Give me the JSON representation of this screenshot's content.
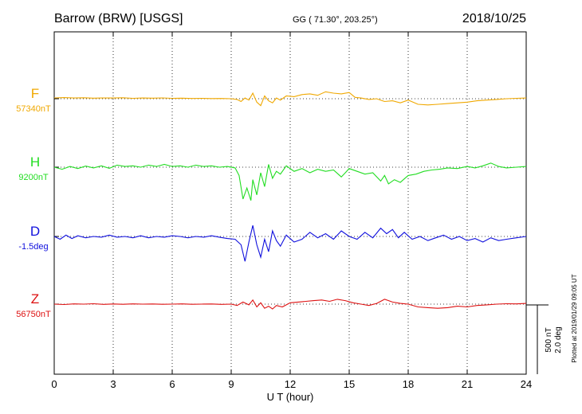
{
  "header": {
    "station": "Barrow (BRW)  [USGS]",
    "coords": "GG ( 71.30°, 203.25°)",
    "date": "2018/10/25"
  },
  "footer": {
    "xlabel": "U T (hour)",
    "plotted": "Plotted at 2019/01/29 09:05 UT"
  },
  "scale_bar": {
    "label_nt": "500 nT",
    "label_deg": "2.0 deg"
  },
  "chart_data": {
    "type": "line",
    "xlabel": "U T (hour)",
    "xlim": [
      0,
      24
    ],
    "xticks": [
      0,
      3,
      6,
      9,
      12,
      15,
      18,
      21,
      24
    ],
    "grid": "dotted vertical at each tick and dotted baseline per trace",
    "series": [
      {
        "name": "F",
        "baseline_label": "57340nT",
        "color": "#f0a800",
        "units_per_panel": "nT",
        "points": [
          [
            0,
            6
          ],
          [
            0.5,
            8
          ],
          [
            1,
            5
          ],
          [
            1.5,
            7
          ],
          [
            2,
            4
          ],
          [
            2.5,
            6
          ],
          [
            3,
            5
          ],
          [
            3.5,
            7
          ],
          [
            4,
            3
          ],
          [
            4.5,
            5
          ],
          [
            5,
            4
          ],
          [
            5.5,
            6
          ],
          [
            6,
            3
          ],
          [
            6.5,
            4
          ],
          [
            7,
            2
          ],
          [
            7.5,
            3
          ],
          [
            8,
            1
          ],
          [
            8.5,
            2
          ],
          [
            9,
            0
          ],
          [
            9.3,
            -5
          ],
          [
            9.5,
            -20
          ],
          [
            9.7,
            5
          ],
          [
            9.9,
            -10
          ],
          [
            10.1,
            40
          ],
          [
            10.3,
            -25
          ],
          [
            10.5,
            -50
          ],
          [
            10.7,
            20
          ],
          [
            10.9,
            -15
          ],
          [
            11.1,
            -30
          ],
          [
            11.3,
            5
          ],
          [
            11.5,
            -10
          ],
          [
            11.8,
            20
          ],
          [
            12.2,
            15
          ],
          [
            12.6,
            30
          ],
          [
            13,
            35
          ],
          [
            13.4,
            25
          ],
          [
            13.8,
            50
          ],
          [
            14.2,
            40
          ],
          [
            14.6,
            35
          ],
          [
            15,
            45
          ],
          [
            15.3,
            10
          ],
          [
            15.6,
            5
          ],
          [
            16,
            -5
          ],
          [
            16.4,
            0
          ],
          [
            16.8,
            -20
          ],
          [
            17.2,
            -15
          ],
          [
            17.6,
            -30
          ],
          [
            18,
            -10
          ],
          [
            18.5,
            -40
          ],
          [
            19,
            -45
          ],
          [
            19.5,
            -40
          ],
          [
            20,
            -35
          ],
          [
            20.5,
            -30
          ],
          [
            21,
            -25
          ],
          [
            21.5,
            -15
          ],
          [
            22,
            -10
          ],
          [
            22.5,
            -5
          ],
          [
            23,
            0
          ],
          [
            23.5,
            3
          ],
          [
            24,
            5
          ]
        ]
      },
      {
        "name": "H",
        "baseline_label": "9200nT",
        "color": "#22dd22",
        "units_per_panel": "nT",
        "points": [
          [
            0,
            0
          ],
          [
            0.4,
            -15
          ],
          [
            0.8,
            5
          ],
          [
            1.2,
            -10
          ],
          [
            1.6,
            8
          ],
          [
            2,
            -5
          ],
          [
            2.4,
            10
          ],
          [
            2.8,
            -8
          ],
          [
            3.2,
            15
          ],
          [
            3.6,
            5
          ],
          [
            4,
            10
          ],
          [
            4.4,
            0
          ],
          [
            4.8,
            15
          ],
          [
            5.2,
            5
          ],
          [
            5.6,
            20
          ],
          [
            6,
            5
          ],
          [
            6.4,
            10
          ],
          [
            6.8,
            0
          ],
          [
            7.2,
            15
          ],
          [
            7.6,
            5
          ],
          [
            8,
            10
          ],
          [
            8.4,
            0
          ],
          [
            8.8,
            5
          ],
          [
            9.2,
            -5
          ],
          [
            9.4,
            -60
          ],
          [
            9.6,
            -230
          ],
          [
            9.8,
            -150
          ],
          [
            10,
            -240
          ],
          [
            10.1,
            -90
          ],
          [
            10.3,
            -200
          ],
          [
            10.5,
            -40
          ],
          [
            10.7,
            -140
          ],
          [
            10.9,
            20
          ],
          [
            11.1,
            -80
          ],
          [
            11.3,
            -30
          ],
          [
            11.5,
            -50
          ],
          [
            11.8,
            10
          ],
          [
            12.2,
            -30
          ],
          [
            12.6,
            -10
          ],
          [
            13,
            -40
          ],
          [
            13.4,
            -15
          ],
          [
            13.8,
            -30
          ],
          [
            14.2,
            -20
          ],
          [
            14.6,
            -70
          ],
          [
            14.8,
            -40
          ],
          [
            15,
            -10
          ],
          [
            15.4,
            -30
          ],
          [
            15.8,
            -50
          ],
          [
            16.2,
            -40
          ],
          [
            16.6,
            -100
          ],
          [
            16.8,
            -60
          ],
          [
            17,
            -120
          ],
          [
            17.3,
            -90
          ],
          [
            17.6,
            -110
          ],
          [
            18,
            -60
          ],
          [
            18.4,
            -50
          ],
          [
            18.8,
            -30
          ],
          [
            19.2,
            -20
          ],
          [
            19.6,
            -15
          ],
          [
            20,
            -5
          ],
          [
            20.5,
            -10
          ],
          [
            21,
            5
          ],
          [
            21.4,
            -5
          ],
          [
            21.8,
            10
          ],
          [
            22.2,
            30
          ],
          [
            22.6,
            5
          ],
          [
            23,
            -5
          ],
          [
            23.5,
            0
          ],
          [
            24,
            5
          ]
        ]
      },
      {
        "name": "D",
        "baseline_label": "-1.5deg",
        "color": "#1010dd",
        "units_per_panel": "deg",
        "points": [
          [
            0,
            0
          ],
          [
            0.3,
            -20
          ],
          [
            0.6,
            10
          ],
          [
            0.9,
            -15
          ],
          [
            1.2,
            5
          ],
          [
            1.6,
            -10
          ],
          [
            2,
            0
          ],
          [
            2.4,
            -5
          ],
          [
            2.8,
            10
          ],
          [
            3.2,
            -5
          ],
          [
            3.6,
            0
          ],
          [
            4,
            -10
          ],
          [
            4.4,
            5
          ],
          [
            4.8,
            -10
          ],
          [
            5.2,
            0
          ],
          [
            5.6,
            -5
          ],
          [
            6,
            5
          ],
          [
            6.4,
            0
          ],
          [
            6.8,
            -10
          ],
          [
            7.2,
            0
          ],
          [
            7.6,
            -5
          ],
          [
            8,
            5
          ],
          [
            8.4,
            -5
          ],
          [
            8.8,
            -15
          ],
          [
            9.2,
            -20
          ],
          [
            9.5,
            -60
          ],
          [
            9.7,
            -180
          ],
          [
            9.9,
            -40
          ],
          [
            10.1,
            80
          ],
          [
            10.3,
            -60
          ],
          [
            10.5,
            -150
          ],
          [
            10.7,
            -20
          ],
          [
            10.9,
            -110
          ],
          [
            11.1,
            40
          ],
          [
            11.3,
            -30
          ],
          [
            11.5,
            -70
          ],
          [
            11.8,
            10
          ],
          [
            12.2,
            -40
          ],
          [
            12.6,
            -20
          ],
          [
            13,
            30
          ],
          [
            13.4,
            -10
          ],
          [
            13.8,
            20
          ],
          [
            14.2,
            -20
          ],
          [
            14.6,
            40
          ],
          [
            15,
            0
          ],
          [
            15.4,
            -20
          ],
          [
            15.8,
            30
          ],
          [
            16.2,
            -10
          ],
          [
            16.6,
            60
          ],
          [
            16.9,
            20
          ],
          [
            17.2,
            50
          ],
          [
            17.5,
            -10
          ],
          [
            17.8,
            30
          ],
          [
            18.2,
            -20
          ],
          [
            18.6,
            0
          ],
          [
            19,
            -30
          ],
          [
            19.4,
            -10
          ],
          [
            19.8,
            10
          ],
          [
            20.2,
            -20
          ],
          [
            20.6,
            0
          ],
          [
            21,
            -30
          ],
          [
            21.4,
            -15
          ],
          [
            21.8,
            -40
          ],
          [
            22.2,
            -10
          ],
          [
            22.6,
            -30
          ],
          [
            23,
            -20
          ],
          [
            23.5,
            -10
          ],
          [
            24,
            0
          ]
        ]
      },
      {
        "name": "Z",
        "baseline_label": "56750nT",
        "color": "#dd1010",
        "units_per_panel": "nT",
        "points": [
          [
            0,
            0
          ],
          [
            0.5,
            -3
          ],
          [
            1,
            2
          ],
          [
            1.5,
            0
          ],
          [
            2,
            3
          ],
          [
            2.5,
            -2
          ],
          [
            3,
            1
          ],
          [
            3.5,
            -1
          ],
          [
            4,
            2
          ],
          [
            4.5,
            0
          ],
          [
            5,
            1
          ],
          [
            5.5,
            -1
          ],
          [
            6,
            0
          ],
          [
            6.5,
            2
          ],
          [
            7,
            -1
          ],
          [
            7.5,
            0
          ],
          [
            8,
            1
          ],
          [
            8.5,
            -2
          ],
          [
            9,
            0
          ],
          [
            9.3,
            -10
          ],
          [
            9.6,
            15
          ],
          [
            9.9,
            -5
          ],
          [
            10.1,
            30
          ],
          [
            10.3,
            -20
          ],
          [
            10.5,
            10
          ],
          [
            10.7,
            -30
          ],
          [
            10.9,
            -15
          ],
          [
            11.1,
            -35
          ],
          [
            11.3,
            -10
          ],
          [
            11.6,
            -20
          ],
          [
            12,
            10
          ],
          [
            12.4,
            15
          ],
          [
            12.8,
            20
          ],
          [
            13.2,
            25
          ],
          [
            13.6,
            30
          ],
          [
            14,
            20
          ],
          [
            14.4,
            35
          ],
          [
            14.8,
            25
          ],
          [
            15.2,
            10
          ],
          [
            15.6,
            0
          ],
          [
            16,
            -10
          ],
          [
            16.4,
            5
          ],
          [
            16.8,
            35
          ],
          [
            17.2,
            15
          ],
          [
            17.6,
            5
          ],
          [
            18,
            0
          ],
          [
            18.5,
            -20
          ],
          [
            19,
            -25
          ],
          [
            19.5,
            -30
          ],
          [
            20,
            -25
          ],
          [
            20.5,
            -15
          ],
          [
            21,
            -20
          ],
          [
            21.5,
            -10
          ],
          [
            22,
            -5
          ],
          [
            22.5,
            0
          ],
          [
            23,
            3
          ],
          [
            23.5,
            2
          ],
          [
            24,
            5
          ]
        ]
      }
    ]
  }
}
